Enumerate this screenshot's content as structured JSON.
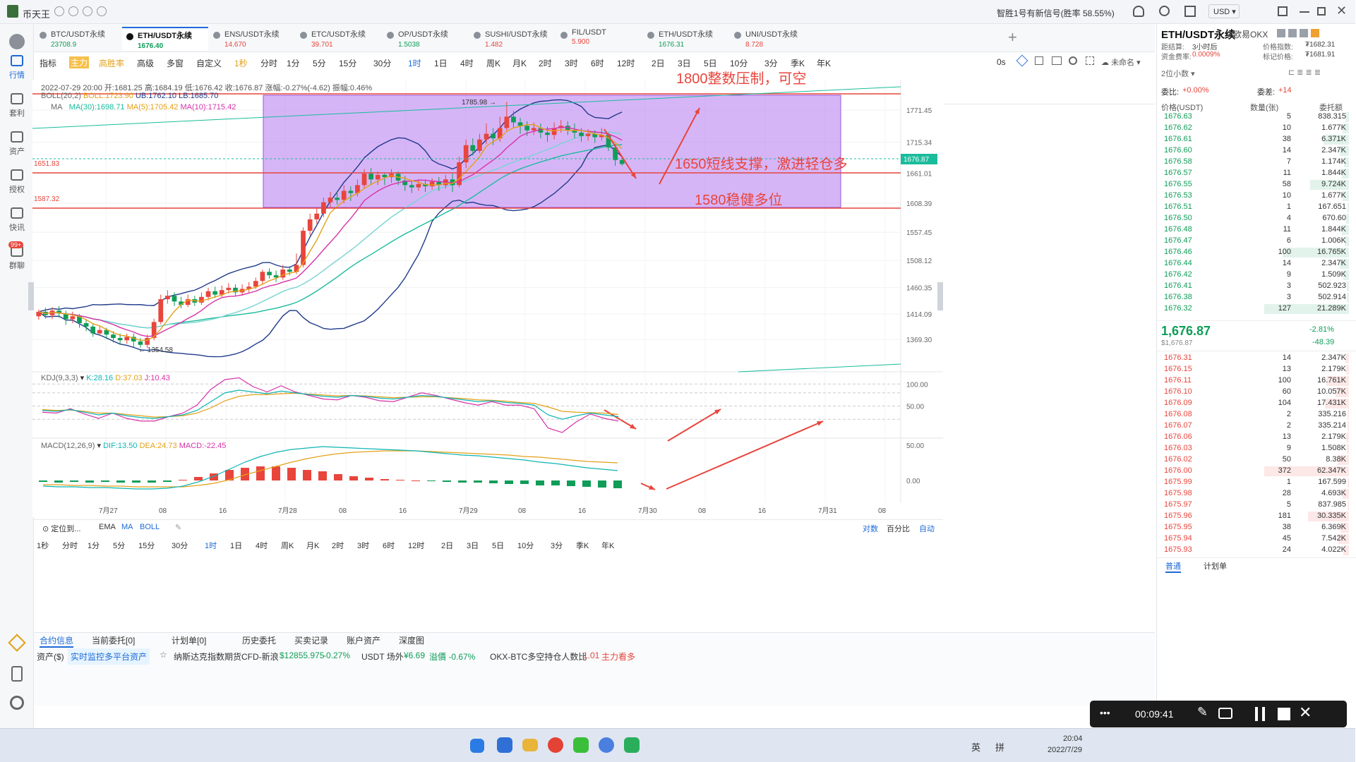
{
  "app": {
    "name": "币天王",
    "signal": "智胜1号有新信号(胜率 58.55%)",
    "currency": "USD"
  },
  "sidebar": [
    {
      "label": "行情",
      "icon": "market-icon"
    },
    {
      "label": "套利",
      "icon": "arbitrage-icon"
    },
    {
      "label": "资产",
      "icon": "asset-icon"
    },
    {
      "label": "授权",
      "icon": "auth-icon"
    },
    {
      "label": "快讯",
      "icon": "news-icon"
    },
    {
      "label": "群聊",
      "icon": "chat-icon",
      "badge": "99+"
    }
  ],
  "tabs": [
    {
      "name": "BTC/USDT永续",
      "price": "23708.9",
      "color": "#0f9d58"
    },
    {
      "name": "ETH/USDT永续",
      "price": "1676.40",
      "color": "#0f9d58"
    },
    {
      "name": "ENS/USDT永续",
      "price": "14.670",
      "color": "#e8453c"
    },
    {
      "name": "ETC/USDT永续",
      "price": "39.701",
      "color": "#e8453c"
    },
    {
      "name": "OP/USDT永续",
      "price": "1.5038",
      "color": "#0f9d58"
    },
    {
      "name": "SUSHI/USDT永续",
      "price": "1.482",
      "color": "#e8453c"
    },
    {
      "name": "FIL/USDT",
      "price": "5.900",
      "color": "#e8453c"
    },
    {
      "name": "ETH/USDT永续",
      "price": "1676.31",
      "color": "#0f9d58"
    },
    {
      "name": "UNI/USDT永续",
      "price": "8.728",
      "color": "#e8453c"
    }
  ],
  "toolbar1": [
    "指标",
    "主力",
    "高胜率",
    "高级",
    "多窗",
    "自定义",
    "1秒",
    "分时",
    "1分",
    "5分",
    "15分",
    "30分",
    "1时",
    "1日",
    "4时",
    "周K",
    "月K",
    "2时",
    "3时",
    "6时",
    "12时",
    "2日",
    "3日",
    "5日",
    "10分",
    "3分",
    "季K",
    "年K"
  ],
  "toolbar1_right": {
    "zoom": "0s",
    "user": "未命名"
  },
  "ohlc": {
    "time": "2022-07-29 20:00",
    "open": "开:1681.25",
    "high": "高:1684.19",
    "low": "低:1676.42",
    "close": "收:1676.87",
    "change": "涨幅:-0.27%(-4.62)",
    "amp": "振幅:0.46%"
  },
  "boll_legend": {
    "name": "BOLL(20,2)",
    "boll": "BOLL:1723.90",
    "ub": "UB:1762.10",
    "lb": "LB:1685.70"
  },
  "ma_legend": {
    "name": "MA",
    "ma30": "MA(30):1698.71",
    "ma5": "MA(5):1705.42",
    "ma10": "MA(10):1715.42"
  },
  "kdj_legend": {
    "name": "KDJ(9,3,3)",
    "k": "K:28.16",
    "d": "D:37.03",
    "j": "J:10.43"
  },
  "macd_legend": {
    "name": "MACD(12,26,9)",
    "dif": "DIF:13.50",
    "dea": "DEA:24.73",
    "macd": "MACD:-22.45"
  },
  "annotations": {
    "a1": "1800整数压制，可空",
    "a2": "1650短线支撑，激进轻仓多",
    "a3": "1580稳健多位",
    "hi": "1785.98",
    "lo": "1354.58",
    "lvl1": "1651.83",
    "lvl2": "1587.32"
  },
  "price_axis": [
    "1771.45",
    "1715.34",
    "1661.01",
    "1608.39",
    "1557.45",
    "1508.12",
    "1460.35",
    "1414.09",
    "1369.30"
  ],
  "current_price": "1676.87",
  "kdj_axis": [
    "100.00",
    "50.00"
  ],
  "macd_axis": [
    "50.00",
    "0.00"
  ],
  "time_axis": [
    "7月27",
    "08",
    "16",
    "7月28",
    "08",
    "16",
    "7月29",
    "08",
    "16",
    "7月30",
    "08",
    "16",
    "7月31",
    "08"
  ],
  "chart_bottom": {
    "locate": "定位到...",
    "indicators": [
      "EMA",
      "MA",
      "BOLL"
    ],
    "right": [
      "对数",
      "百分比",
      "自动"
    ]
  },
  "toolbar2": [
    "1秒",
    "分时",
    "1分",
    "5分",
    "15分",
    "30分",
    "1时",
    "1日",
    "4时",
    "周K",
    "月K",
    "2时",
    "3时",
    "6时",
    "12时",
    "2日",
    "3日",
    "5日",
    "10分",
    "3分",
    "季K",
    "年K"
  ],
  "bottom_tabs": [
    "合约信息",
    "当前委托[0]",
    "计划单[0]",
    "历史委托",
    "买卖记录",
    "账户资产",
    "深度图"
  ],
  "ticker": {
    "asset": "资产($)",
    "monitor": "实时监控多平台资产",
    "nasdaq": "纳斯达克指数期货CFD-新浪",
    "nasdaq_price": "$12855.975",
    "nasdaq_chg": "-0.27%",
    "usdt": "USDT 场外",
    "usdt_price": "¥6.69",
    "usdt_prem": "溢價 -0.67%",
    "okx": "OKX-BTC多空持仓人数比",
    "okx_val": "1.01",
    "okx_side": "主力看多"
  },
  "ob": {
    "pair": "ETH/USDT永续",
    "exchange": "欧易OKX",
    "settle_label": "距结算:",
    "settle": "3小时后",
    "index_label": "价格指数:",
    "index": "₮1682.31",
    "rate_label": "资金费率:",
    "rate": "0.0009%",
    "mark_label": "标记价格:",
    "mark": "₮1681.91",
    "decimals": "2位小数",
    "ratio_label": "委比:",
    "ratio": "+0.00%",
    "diff_label": "委差:",
    "diff": "+14",
    "col_price": "价格(USDT)",
    "col_qty": "数量(张)",
    "col_amt": "委托额",
    "asks": [
      [
        "1676.63",
        "5",
        "838.315"
      ],
      [
        "1676.62",
        "10",
        "1.677K"
      ],
      [
        "1676.61",
        "38",
        "6.371K"
      ],
      [
        "1676.60",
        "14",
        "2.347K"
      ],
      [
        "1676.58",
        "7",
        "1.174K"
      ],
      [
        "1676.57",
        "11",
        "1.844K"
      ],
      [
        "1676.55",
        "58",
        "9.724K"
      ],
      [
        "1676.53",
        "10",
        "1.677K"
      ],
      [
        "1676.51",
        "1",
        "167.651"
      ],
      [
        "1676.50",
        "4",
        "670.60"
      ],
      [
        "1676.48",
        "11",
        "1.844K"
      ],
      [
        "1676.47",
        "6",
        "1.006K"
      ],
      [
        "1676.46",
        "100",
        "16.765K"
      ],
      [
        "1676.44",
        "14",
        "2.347K"
      ],
      [
        "1676.42",
        "9",
        "1.509K"
      ],
      [
        "1676.41",
        "3",
        "502.923"
      ],
      [
        "1676.38",
        "3",
        "502.914"
      ],
      [
        "1676.32",
        "127",
        "21.289K"
      ]
    ],
    "last": "1,676.87",
    "last_usd": "$1,676.87",
    "last_pct": "-2.81%",
    "last_chg": "-48.39",
    "bids": [
      [
        "1676.31",
        "14",
        "2.347K"
      ],
      [
        "1676.15",
        "13",
        "2.179K"
      ],
      [
        "1676.11",
        "100",
        "16.761K"
      ],
      [
        "1676.10",
        "60",
        "10.057K"
      ],
      [
        "1676.09",
        "104",
        "17.431K"
      ],
      [
        "1676.08",
        "2",
        "335.216"
      ],
      [
        "1676.07",
        "2",
        "335.214"
      ],
      [
        "1676.06",
        "13",
        "2.179K"
      ],
      [
        "1676.03",
        "9",
        "1.508K"
      ],
      [
        "1676.02",
        "50",
        "8.38K"
      ],
      [
        "1676.00",
        "372",
        "62.347K"
      ],
      [
        "1675.99",
        "1",
        "167.599"
      ],
      [
        "1675.98",
        "28",
        "4.693K"
      ],
      [
        "1675.97",
        "5",
        "837.985"
      ],
      [
        "1675.96",
        "181",
        "30.335K"
      ],
      [
        "1675.95",
        "38",
        "6.369K"
      ],
      [
        "1675.94",
        "45",
        "7.542K"
      ],
      [
        "1675.93",
        "24",
        "4.022K"
      ]
    ],
    "bottom_tabs": [
      "普通",
      "计划单"
    ]
  },
  "recorder": {
    "time": "00:09:41"
  },
  "taskbar": {
    "time": "20:04",
    "date": "2022/7/29",
    "ime1": "英",
    "ime2": "拼"
  },
  "chart_data": {
    "type": "candlestick",
    "symbol": "ETH/USDT永续",
    "interval": "1时",
    "ylim": [
      1330,
      1800
    ],
    "candles": [
      [
        1410,
        1418,
        1422,
        1404
      ],
      [
        1418,
        1412,
        1425,
        1406
      ],
      [
        1412,
        1420,
        1426,
        1405
      ],
      [
        1420,
        1415,
        1428,
        1408
      ],
      [
        1415,
        1405,
        1420,
        1395
      ],
      [
        1405,
        1410,
        1418,
        1398
      ],
      [
        1410,
        1398,
        1414,
        1390
      ],
      [
        1398,
        1392,
        1405,
        1384
      ],
      [
        1392,
        1380,
        1396,
        1374
      ],
      [
        1380,
        1386,
        1392,
        1376
      ],
      [
        1386,
        1378,
        1390,
        1370
      ],
      [
        1378,
        1372,
        1384,
        1364
      ],
      [
        1372,
        1368,
        1380,
        1360
      ],
      [
        1368,
        1374,
        1380,
        1362
      ],
      [
        1374,
        1366,
        1380,
        1356
      ],
      [
        1366,
        1360,
        1372,
        1355
      ],
      [
        1360,
        1372,
        1378,
        1355
      ],
      [
        1372,
        1400,
        1406,
        1368
      ],
      [
        1400,
        1440,
        1448,
        1396
      ],
      [
        1440,
        1446,
        1456,
        1432
      ],
      [
        1446,
        1436,
        1452,
        1428
      ],
      [
        1436,
        1430,
        1444,
        1424
      ],
      [
        1430,
        1440,
        1448,
        1426
      ],
      [
        1440,
        1434,
        1446,
        1428
      ],
      [
        1434,
        1444,
        1452,
        1430
      ],
      [
        1444,
        1454,
        1460,
        1438
      ],
      [
        1454,
        1448,
        1462,
        1442
      ],
      [
        1448,
        1456,
        1464,
        1444
      ],
      [
        1456,
        1460,
        1468,
        1450
      ],
      [
        1460,
        1452,
        1466,
        1446
      ],
      [
        1452,
        1458,
        1466,
        1446
      ],
      [
        1458,
        1462,
        1470,
        1452
      ],
      [
        1462,
        1472,
        1478,
        1458
      ],
      [
        1472,
        1488,
        1492,
        1466
      ],
      [
        1488,
        1482,
        1494,
        1476
      ],
      [
        1482,
        1478,
        1490,
        1470
      ],
      [
        1478,
        1492,
        1500,
        1474
      ],
      [
        1492,
        1488,
        1498,
        1482
      ],
      [
        1488,
        1500,
        1520,
        1484
      ],
      [
        1500,
        1560,
        1566,
        1496
      ],
      [
        1560,
        1580,
        1590,
        1552
      ],
      [
        1580,
        1590,
        1600,
        1572
      ],
      [
        1590,
        1610,
        1618,
        1584
      ],
      [
        1610,
        1618,
        1628,
        1600
      ],
      [
        1618,
        1614,
        1630,
        1606
      ],
      [
        1614,
        1630,
        1640,
        1608
      ],
      [
        1630,
        1626,
        1638,
        1612
      ],
      [
        1626,
        1640,
        1650,
        1620
      ],
      [
        1640,
        1660,
        1668,
        1634
      ],
      [
        1660,
        1650,
        1670,
        1640
      ],
      [
        1650,
        1658,
        1664,
        1640
      ],
      [
        1658,
        1654,
        1662,
        1640
      ],
      [
        1654,
        1660,
        1668,
        1644
      ],
      [
        1660,
        1648,
        1664,
        1640
      ],
      [
        1648,
        1640,
        1656,
        1630
      ],
      [
        1640,
        1636,
        1648,
        1626
      ],
      [
        1636,
        1642,
        1650,
        1630
      ],
      [
        1642,
        1638,
        1650,
        1628
      ],
      [
        1638,
        1646,
        1652,
        1632
      ],
      [
        1646,
        1640,
        1654,
        1630
      ],
      [
        1640,
        1650,
        1658,
        1634
      ],
      [
        1650,
        1640,
        1660,
        1628
      ],
      [
        1640,
        1680,
        1690,
        1636
      ],
      [
        1680,
        1710,
        1720,
        1670
      ],
      [
        1710,
        1700,
        1722,
        1692
      ],
      [
        1700,
        1720,
        1730,
        1696
      ],
      [
        1720,
        1730,
        1748,
        1712
      ],
      [
        1730,
        1722,
        1740,
        1710
      ],
      [
        1722,
        1740,
        1760,
        1716
      ],
      [
        1740,
        1760,
        1786,
        1734
      ],
      [
        1760,
        1750,
        1770,
        1740
      ],
      [
        1750,
        1744,
        1758,
        1730
      ],
      [
        1744,
        1736,
        1752,
        1726
      ],
      [
        1736,
        1740,
        1750,
        1728
      ],
      [
        1740,
        1732,
        1748,
        1722
      ],
      [
        1732,
        1728,
        1742,
        1716
      ],
      [
        1728,
        1740,
        1750,
        1720
      ],
      [
        1740,
        1744,
        1754,
        1732
      ],
      [
        1744,
        1736,
        1752,
        1728
      ],
      [
        1736,
        1732,
        1748,
        1722
      ],
      [
        1732,
        1726,
        1740,
        1716
      ],
      [
        1726,
        1730,
        1738,
        1718
      ],
      [
        1730,
        1724,
        1736,
        1714
      ],
      [
        1724,
        1728,
        1740,
        1718
      ],
      [
        1728,
        1706,
        1732,
        1700
      ],
      [
        1706,
        1684,
        1712,
        1674
      ],
      [
        1684,
        1677,
        1688,
        1674
      ]
    ],
    "kdj": {
      "k": [
        40,
        38,
        42,
        36,
        30,
        34,
        28,
        24,
        22,
        26,
        30,
        40,
        60,
        80,
        86,
        82,
        78,
        84,
        80,
        76,
        72,
        70,
        74,
        72,
        68,
        66,
        70,
        74,
        72,
        68,
        64,
        60,
        62,
        58,
        56,
        52,
        30,
        20,
        28,
        34,
        30,
        26
      ],
      "d": [
        42,
        40,
        41,
        38,
        34,
        34,
        31,
        28,
        25,
        26,
        28,
        34,
        46,
        62,
        72,
        76,
        76,
        78,
        79,
        77,
        75,
        73,
        74,
        73,
        71,
        69,
        70,
        71,
        71,
        69,
        67,
        64,
        63,
        61,
        58,
        56,
        48,
        38,
        36,
        35,
        34,
        31
      ],
      "j": [
        36,
        34,
        44,
        32,
        22,
        34,
        22,
        16,
        16,
        26,
        34,
        52,
        88,
        110,
        114,
        94,
        82,
        96,
        82,
        74,
        66,
        64,
        74,
        70,
        62,
        60,
        70,
        80,
        74,
        66,
        58,
        52,
        60,
        52,
        52,
        44,
        0,
        -10,
        14,
        32,
        22,
        16
      ]
    },
    "macd": {
      "dif": [
        -8,
        -9,
        -9,
        -10,
        -10,
        -11,
        -12,
        -12,
        -11,
        -8,
        -2,
        6,
        16,
        26,
        34,
        40,
        44,
        46,
        48,
        47,
        46,
        45,
        44,
        43,
        42,
        40,
        38,
        36,
        35,
        33,
        31,
        29,
        26,
        24,
        21,
        18,
        16,
        14
      ],
      "dea": [
        -6,
        -6,
        -7,
        -7,
        -8,
        -8,
        -9,
        -9,
        -9,
        -9,
        -7,
        -4,
        1,
        8,
        14,
        20,
        26,
        31,
        35,
        38,
        40,
        41,
        42,
        42,
        42,
        41,
        40,
        39,
        38,
        37,
        36,
        34,
        33,
        31,
        29,
        27,
        26,
        25
      ],
      "hist": [
        -2,
        -3,
        -2,
        -3,
        -2,
        -3,
        -3,
        -3,
        -2,
        1,
        5,
        10,
        15,
        18,
        20,
        20,
        18,
        15,
        13,
        9,
        6,
        4,
        2,
        1,
        0,
        -1,
        -2,
        -3,
        -3,
        -4,
        -5,
        -5,
        -7,
        -7,
        -8,
        -9,
        -10,
        -11
      ]
    }
  }
}
